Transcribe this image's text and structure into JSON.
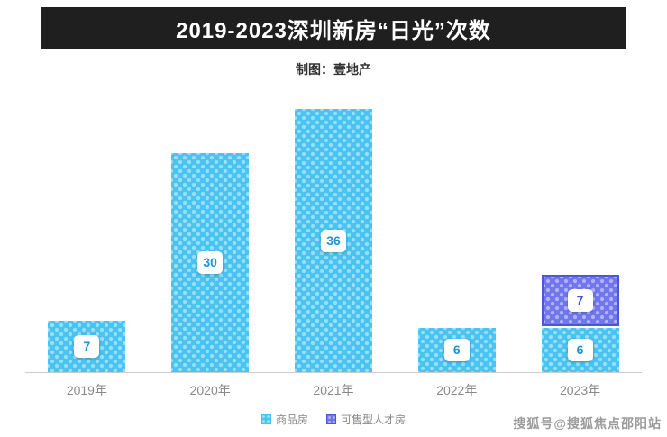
{
  "header": {
    "title": "2019-2023深圳新房“日光”次数",
    "subtitle": "制图：壹地产"
  },
  "footer": {
    "watermark": "搜狐号@搜狐焦点邵阳站"
  },
  "colors": {
    "title_bar_bg": "#1f1f1f",
    "commodity_bar": "#49c3f1",
    "talent_bar": "#6f76ee",
    "talent_border": "#4d55d8",
    "label_text_blue": "#1b93d5",
    "label_text_purple": "#4050d6",
    "axis_text": "#8a8a8a"
  },
  "chart_data": {
    "type": "bar",
    "stacked": true,
    "title": "2019-2023深圳新房“日光”次数",
    "subtitle": "制图：壹地产",
    "categories": [
      "2019年",
      "2020年",
      "2021年",
      "2022年",
      "2023年"
    ],
    "series": [
      {
        "name": "商品房",
        "values": [
          7,
          30,
          36,
          6,
          6
        ],
        "color": "#49c3f1"
      },
      {
        "name": "可售型人才房",
        "values": [
          0,
          0,
          0,
          0,
          7
        ],
        "color": "#6f76ee"
      }
    ],
    "xlabel": "",
    "ylabel": "",
    "ylim": [
      0,
      39
    ],
    "grid": false,
    "y_axis_visible": false,
    "legend_position": "bottom",
    "data_labels": true
  }
}
